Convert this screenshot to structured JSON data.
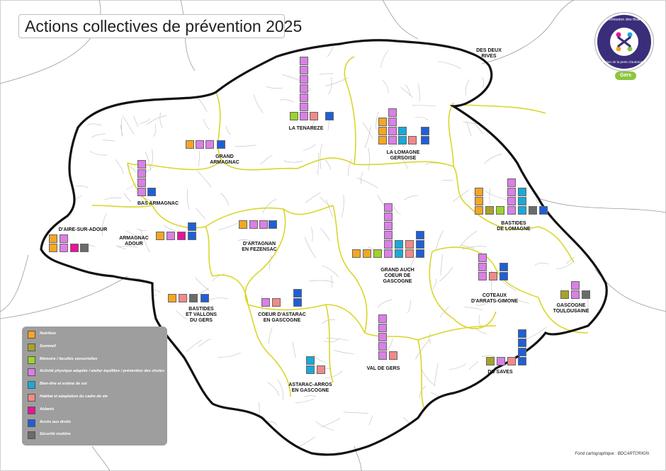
{
  "title": "Actions collectives de prévention 2025",
  "logo": {
    "top_text": "Commission des financeurs",
    "bottom_text": "Prévention de la perte d'autonomie",
    "badge": "Gers",
    "icon": "people-circle-icon"
  },
  "colors": {
    "nutrition": "#f5a623",
    "sommeil": "#a9a22a",
    "memoire": "#9fd22b",
    "activite": "#da80e6",
    "bienetre": "#1aa9d8",
    "habitat": "#f08a8a",
    "aidants": "#e8139a",
    "acces": "#1f5fd6",
    "securite": "#6b6b6b",
    "border_department": "#111111",
    "border_zone": "#d9d62a",
    "commune_lines": "#b8b8b8"
  },
  "legend": [
    {
      "key": "nutrition",
      "label": "Nutrition"
    },
    {
      "key": "sommeil",
      "label": "Sommeil"
    },
    {
      "key": "memoire",
      "label": "Mémoire / facultés sensorielles"
    },
    {
      "key": "activite",
      "label": "Activité physique adaptée / atelier équilibre / prévention des chutes"
    },
    {
      "key": "bienetre",
      "label": "Bien-être et estime de soi"
    },
    {
      "key": "habitat",
      "label": "Habitat et adaptation du cadre de vie"
    },
    {
      "key": "aidants",
      "label": "Aidants"
    },
    {
      "key": "acces",
      "label": "Accès aux droits"
    },
    {
      "key": "securite",
      "label": "Sécurité routière"
    }
  ],
  "source": "Fond cartographique : BDCARTO®IGN",
  "zones": [
    {
      "name": "LA TENAREZE",
      "counts": {
        "memoire": 1,
        "activite": 7,
        "habitat": 1,
        "acces": 1
      }
    },
    {
      "name": "LA LOMAGNE GERSOISE",
      "counts": {
        "nutrition": 3,
        "activite": 4,
        "bienetre": 2,
        "habitat": 1,
        "acces": 2
      }
    },
    {
      "name": "DES DEUX RIVES",
      "counts": {}
    },
    {
      "name": "GRAND ARMAGNAC",
      "counts": {
        "nutrition": 1,
        "activite": 2,
        "habitat": 1,
        "acces": 1
      }
    },
    {
      "name": "BAS ARMAGNAC",
      "counts": {
        "activite": 4,
        "acces": 1
      }
    },
    {
      "name": "BASTIDES DE LOMAGNE",
      "counts": {
        "nutrition": 3,
        "sommeil": 1,
        "memoire": 1,
        "activite": 4,
        "bienetre": 3,
        "securite": 1,
        "acces": 1
      }
    },
    {
      "name": "D'AIRE-SUR-ADOUR",
      "counts": {
        "nutrition": 2,
        "activite": 2,
        "aidants": 1,
        "securite": 1
      }
    },
    {
      "name": "ARMAGNAC ADOUR",
      "counts": {
        "nutrition": 1,
        "activite": 1,
        "aidants": 1,
        "acces": 2
      }
    },
    {
      "name": "D'ARTAGNAN EN FEZENSAC",
      "counts": {
        "nutrition": 1,
        "activite": 2,
        "acces": 1
      }
    },
    {
      "name": "GRAND AUCH COEUR DE GASCOGNE",
      "counts": {
        "nutrition": 2,
        "memoire": 1,
        "activite": 6,
        "bienetre": 2,
        "habitat": 2,
        "acces": 3
      }
    },
    {
      "name": "COTEAUX D'ARRATS-GIMONE",
      "counts": {
        "activite": 3,
        "habitat": 1,
        "acces": 2
      }
    },
    {
      "name": "GASCOGNE TOULOUSAINE",
      "counts": {
        "sommeil": 1,
        "activite": 2,
        "securite": 1
      }
    },
    {
      "name": "BASTIDES ET VALLONS DU GERS",
      "counts": {
        "nutrition": 1,
        "habitat": 1,
        "securite": 1,
        "acces": 1
      }
    },
    {
      "name": "COEUR D'ASTARAC EN GASCOGNE",
      "counts": {
        "activite": 1,
        "habitat": 1,
        "acces": 2
      }
    },
    {
      "name": "VAL DE GERS",
      "counts": {
        "activite": 5,
        "habitat": 1
      }
    },
    {
      "name": "DU SAVES",
      "counts": {
        "sommeil": 1,
        "activite": 1,
        "habitat": 1,
        "acces": 4
      }
    },
    {
      "name": "ASTARAC-ARROS EN GASCOGNE",
      "counts": {
        "bienetre": 2,
        "habitat": 1
      }
    }
  ]
}
